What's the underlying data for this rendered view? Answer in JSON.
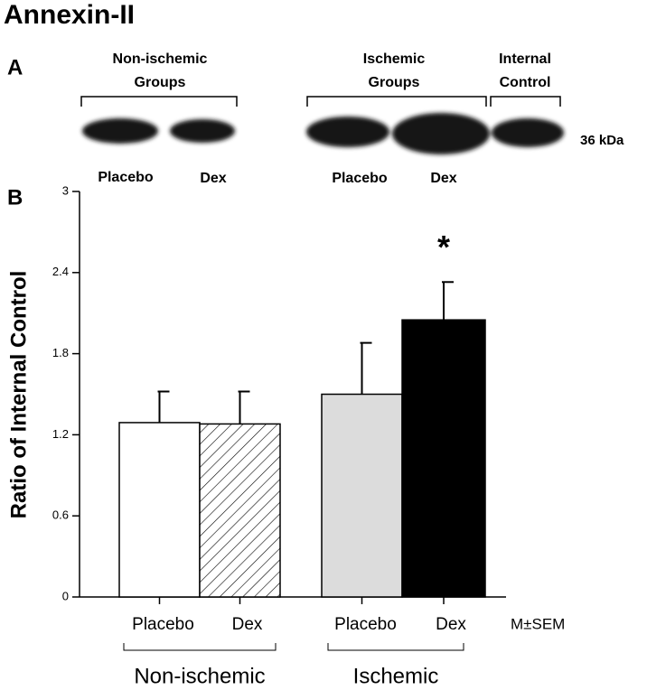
{
  "title": "Annexin-II",
  "panels": [
    "A",
    "B"
  ],
  "blot": {
    "groups": [
      [
        "Non-ischemic",
        "Groups"
      ],
      [
        "Ischemic",
        "Groups"
      ],
      [
        "Internal",
        "Control"
      ]
    ],
    "lanes": [
      "Placebo",
      "Dex",
      "Placebo",
      "Dex"
    ],
    "marker": "36 kDa"
  },
  "chart_data": {
    "type": "bar",
    "y_label": "Ratio of Internal Control",
    "categories": [
      "Placebo",
      "Dex",
      "Placebo",
      "Dex"
    ],
    "groups": [
      "Non-ischemic",
      "Ischemic"
    ],
    "values": [
      1.29,
      1.28,
      1.5,
      2.05
    ],
    "errors": [
      0.23,
      0.24,
      0.38,
      0.28
    ],
    "colors": [
      "#ffffff",
      "#ffffff",
      "#dcdcdc",
      "#000000"
    ],
    "patterns": [
      "solid",
      "hatch",
      "solid",
      "solid"
    ],
    "annotation": "*",
    "note": "M±SEM",
    "ylim": [
      0,
      3
    ],
    "yticks": [
      0,
      0.6,
      1.2,
      1.8,
      2.4,
      3
    ]
  }
}
